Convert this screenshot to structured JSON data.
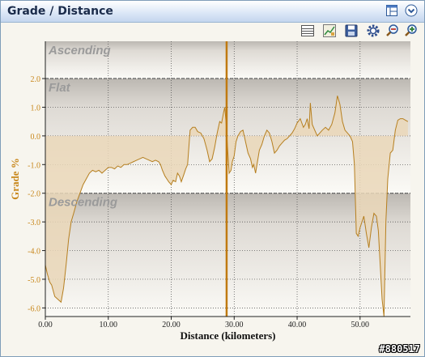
{
  "window": {
    "title": "Grade / Distance"
  },
  "titlebar_buttons": [
    {
      "name": "layout-icon",
      "label": "Layout"
    },
    {
      "name": "chevron-down-icon",
      "label": "Collapse"
    }
  ],
  "toolbar": [
    {
      "name": "table-view-icon"
    },
    {
      "name": "chart-view-icon"
    },
    {
      "name": "save-icon"
    },
    {
      "name": "settings-icon"
    },
    {
      "name": "zoom-out-icon"
    },
    {
      "name": "zoom-in-icon"
    }
  ],
  "colors": {
    "accent": "#c8871b",
    "fill": "#ead7b8",
    "line": "#b67f1f",
    "marker": "#c07a10"
  },
  "watermark": "#880517",
  "chart_data": {
    "type": "area",
    "xlabel": "Distance (kilometers)",
    "ylabel": "Grade %",
    "xlim": [
      0,
      58
    ],
    "ylim": [
      -6.3,
      3.3
    ],
    "x_ticks": [
      0,
      10,
      20,
      30,
      40,
      50
    ],
    "x_tick_labels": [
      "0.00",
      "10.00",
      "20.00",
      "30.00",
      "40.00",
      "50.00"
    ],
    "y_ticks": [
      2,
      1,
      0,
      -1,
      -2,
      -3,
      -4,
      -5,
      -6
    ],
    "y_tick_labels": [
      "2.0",
      "1.0",
      "0.0",
      "-1.0",
      "-2.0",
      "-3.0",
      "-4.0",
      "-5.0",
      "-6.0"
    ],
    "bands": [
      {
        "label": "Ascending",
        "from": 2,
        "to": 3.3
      },
      {
        "label": "Flat",
        "from": -2,
        "to": 2
      },
      {
        "label": "Descending",
        "from": -6.3,
        "to": -2
      }
    ],
    "marker_x": 28.8,
    "grid": true,
    "series": [
      {
        "x": [
          0,
          0.3,
          0.7,
          1,
          1.5,
          2,
          2.5,
          2.9,
          3.3,
          3.7,
          4.1,
          4.5,
          5,
          5.5,
          6,
          6.5,
          7,
          7.5,
          8,
          8.5,
          9,
          9.5,
          10,
          10.5,
          11,
          11.5,
          12,
          12.5,
          13,
          13.5,
          14,
          14.5,
          15,
          15.5,
          16,
          16.5,
          17,
          17.5,
          18,
          18.3,
          18.6,
          19,
          19.3,
          19.6,
          20,
          20.3,
          20.7,
          21,
          21.3,
          21.6,
          22,
          22.3,
          22.6,
          23,
          23.4,
          23.8,
          24.2,
          24.7,
          25.2,
          25.7,
          26.1,
          26.5,
          26.9,
          27.3,
          27.7,
          28,
          28.3,
          28.5,
          28.7,
          29,
          29.2,
          29.5,
          29.7,
          30,
          30.3,
          30.6,
          31,
          31.4,
          31.8,
          32.2,
          32.6,
          32.9,
          33.1,
          33.4,
          33.7,
          34,
          34.4,
          34.8,
          35.2,
          35.6,
          36,
          36.4,
          36.8,
          37.2,
          37.6,
          38,
          38.4,
          38.8,
          39.2,
          39.6,
          40,
          40.5,
          41,
          41.3,
          41.6,
          41.9,
          42.1,
          42.4,
          42.8,
          43.2,
          43.6,
          44,
          44.5,
          45,
          45.5,
          46,
          46.4,
          46.8,
          47.2,
          47.6,
          48,
          48.4,
          48.8,
          49.1,
          49.4,
          49.7,
          50,
          50.3,
          50.6,
          51,
          51.4,
          51.8,
          52.2,
          52.6,
          52.9,
          53.2,
          53.5,
          53.8,
          54.1,
          54.4,
          54.8,
          55.2,
          55.6,
          56,
          56.4,
          56.8,
          57.2,
          57.6
        ],
        "y": [
          -4.5,
          -4.8,
          -5.1,
          -5.2,
          -5.6,
          -5.7,
          -5.8,
          -5.3,
          -4.5,
          -3.6,
          -3.0,
          -2.7,
          -2.3,
          -2.0,
          -1.7,
          -1.5,
          -1.3,
          -1.2,
          -1.25,
          -1.2,
          -1.3,
          -1.2,
          -1.1,
          -1.1,
          -1.15,
          -1.05,
          -1.1,
          -1.0,
          -1.0,
          -0.95,
          -0.9,
          -0.85,
          -0.8,
          -0.75,
          -0.8,
          -0.85,
          -0.9,
          -0.85,
          -0.9,
          -1.0,
          -1.2,
          -1.4,
          -1.5,
          -1.6,
          -1.7,
          -1.55,
          -1.6,
          -1.3,
          -1.4,
          -1.6,
          -1.35,
          -1.15,
          -1.0,
          0.2,
          0.3,
          0.3,
          0.15,
          0.1,
          -0.1,
          -0.5,
          -0.9,
          -0.8,
          -0.4,
          0.1,
          0.5,
          0.45,
          0.8,
          1.0,
          0.5,
          -0.6,
          -1.3,
          -1.2,
          -0.9,
          -0.7,
          -0.2,
          0.0,
          0.15,
          0.2,
          -0.2,
          -0.6,
          -0.8,
          -1.1,
          -1.0,
          -1.3,
          -0.9,
          -0.5,
          -0.3,
          0.0,
          0.2,
          0.1,
          -0.2,
          -0.6,
          -0.5,
          -0.35,
          -0.25,
          -0.15,
          -0.1,
          0.0,
          0.1,
          0.25,
          0.45,
          0.6,
          0.3,
          0.4,
          0.6,
          0.25,
          1.15,
          0.4,
          0.2,
          0.0,
          0.1,
          0.2,
          0.3,
          0.2,
          0.4,
          0.8,
          1.4,
          1.1,
          0.5,
          0.2,
          0.1,
          0.0,
          -0.2,
          -1.0,
          -3.4,
          -3.5,
          -3.2,
          -3.0,
          -2.8,
          -3.4,
          -3.9,
          -3.2,
          -2.7,
          -2.8,
          -3.3,
          -4.5,
          -5.7,
          -6.3,
          -3.0,
          -1.5,
          -0.6,
          -0.5,
          0.2,
          0.55,
          0.6,
          0.6,
          0.55,
          0.5
        ]
      }
    ]
  }
}
